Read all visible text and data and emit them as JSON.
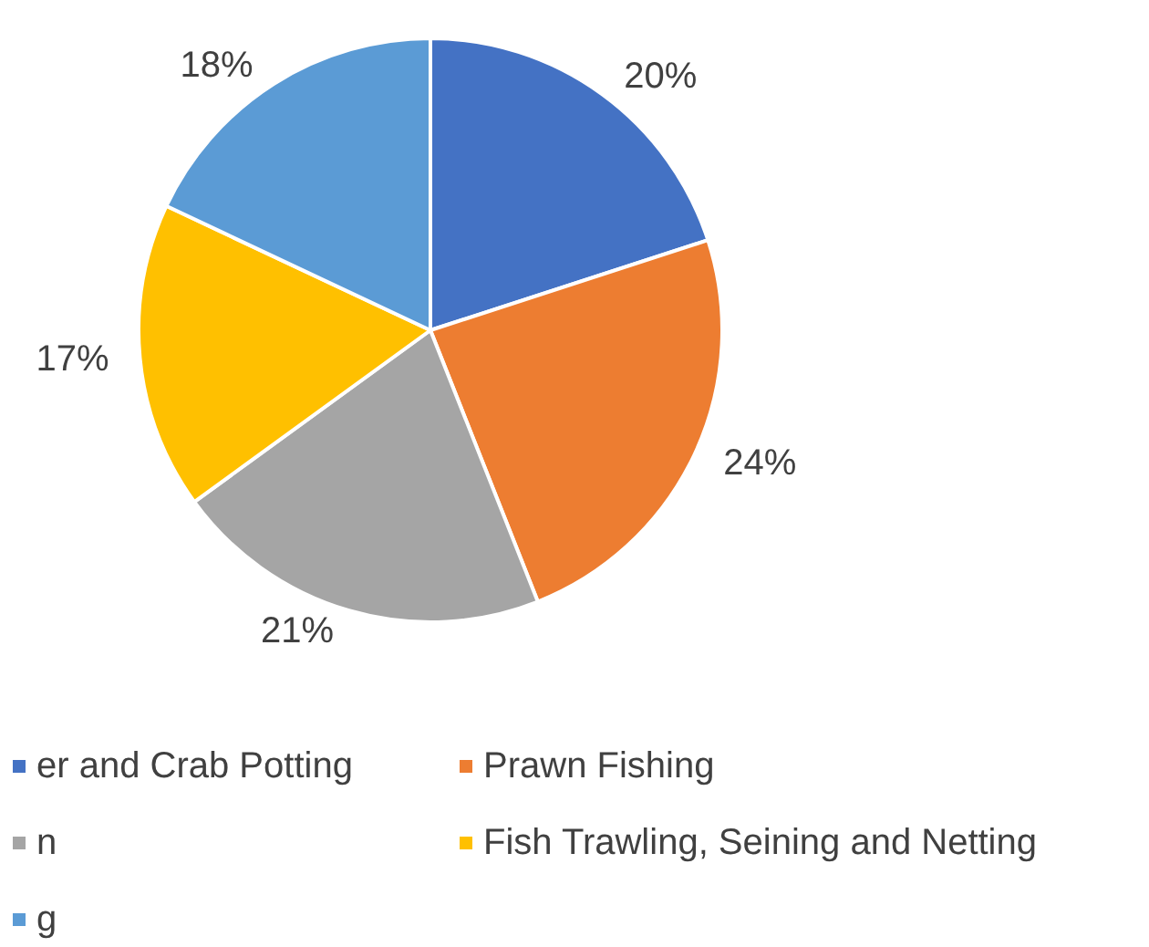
{
  "chart_data": {
    "type": "pie",
    "categories": [
      "er and Crab Potting",
      "Prawn Fishing",
      "n",
      "Fish Trawling, Seining and Netting",
      "g"
    ],
    "values": [
      20,
      24,
      21,
      17,
      18
    ],
    "colors": [
      "#4472c4",
      "#ed7d31",
      "#a5a5a5",
      "#ffc000",
      "#5b9bd5"
    ],
    "value_labels": [
      "20%",
      "24%",
      "21%",
      "17%",
      "18%"
    ],
    "legend": "bottom"
  }
}
